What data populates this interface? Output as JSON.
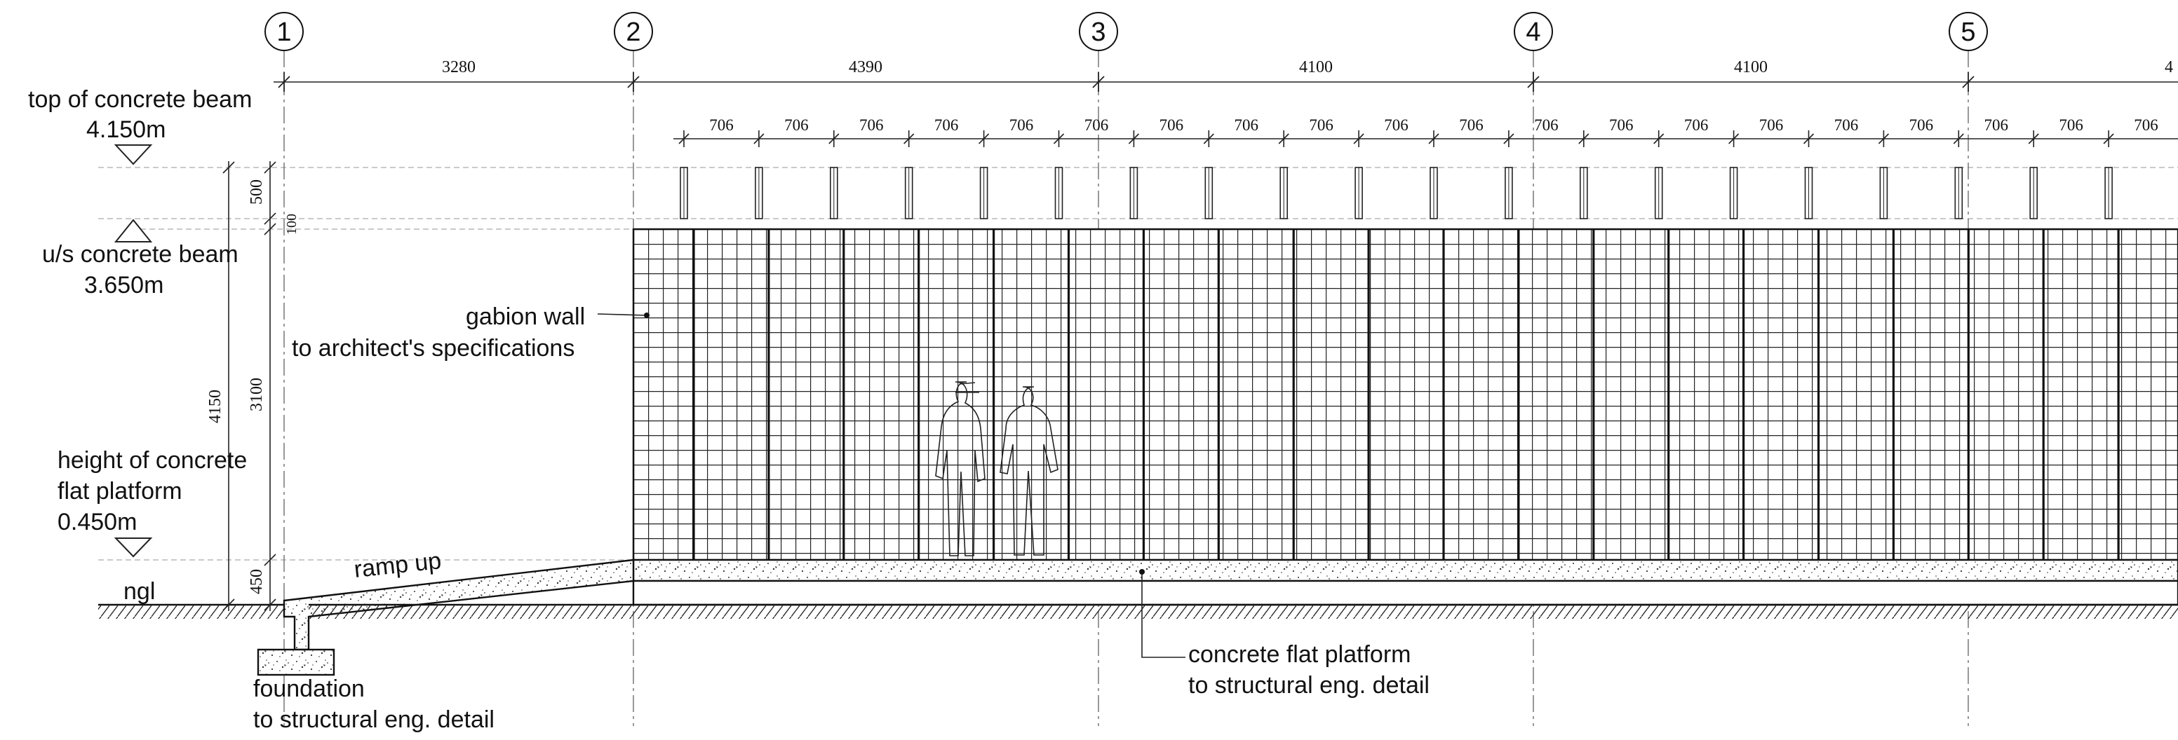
{
  "grid_labels": [
    "1",
    "2",
    "3",
    "4",
    "5"
  ],
  "bay_dimensions": [
    "3280",
    "4390",
    "4100",
    "4100",
    "4"
  ],
  "post_spacing_label": "706",
  "vertical_dimensions": {
    "overall": "4150",
    "beam_depth": "500",
    "gap": "100",
    "wall_height": "3100",
    "platform_height": "450"
  },
  "levels": {
    "top_beam_label": "top of concrete beam",
    "top_beam_value": "4.150m",
    "us_beam_label": "u/s concrete beam",
    "us_beam_value": "3.650m",
    "platform_label_line1": "height of concrete",
    "platform_label_line2": "flat platform",
    "platform_value": "0.450m",
    "ngl": "ngl"
  },
  "annotations": {
    "gabion_line1": "gabion wall",
    "gabion_line2": "to architect's specifications",
    "ramp": "ramp up",
    "foundation_line1": "foundation",
    "foundation_line2": "to structural eng. detail",
    "platform_line1": "concrete flat platform",
    "platform_line2": "to structural eng. detail"
  }
}
